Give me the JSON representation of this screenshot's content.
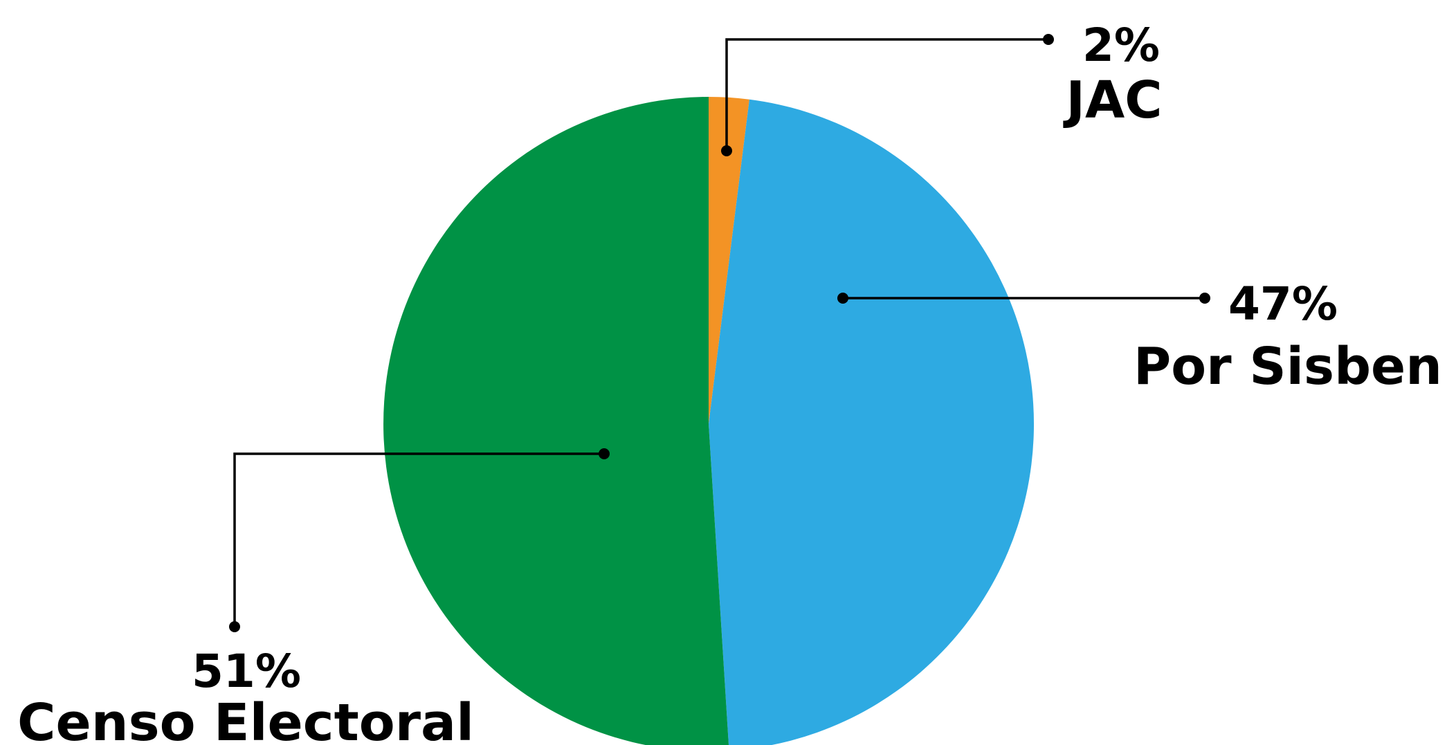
{
  "chart_data": {
    "type": "pie",
    "title": "",
    "start_angle_deg": 0,
    "direction": "clockwise",
    "slices": [
      {
        "label": "JAC",
        "value": 2,
        "display": "2%",
        "color": "#F39325"
      },
      {
        "label": "Por Sisben",
        "value": 47,
        "display": "47%",
        "color": "#2EAAE2"
      },
      {
        "label": "Censo Electoral",
        "value": 51,
        "display": "51%",
        "color": "#009245"
      }
    ],
    "labels_with_leader_lines": true,
    "leader_line_color": "#000000"
  }
}
